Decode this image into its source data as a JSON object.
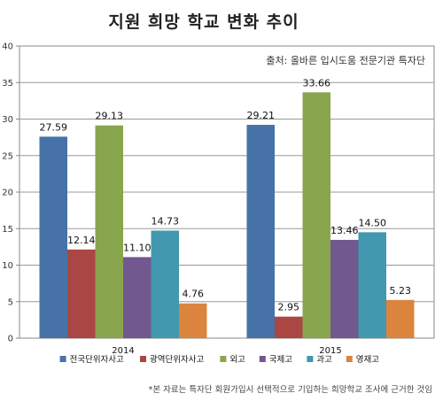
{
  "title": "지원 희망 학교 변화 추이",
  "source": "출처: 올바른 입시도움 전문기관 특자단",
  "footnote": "*본 자료는 특자단 회원가입시 선택적으로 기입하는 희망학교 조사에 근거한 것임",
  "chart_data": {
    "type": "bar",
    "categories": [
      "2014",
      "2015"
    ],
    "ylim": [
      0,
      40
    ],
    "yticks": [
      0,
      5,
      10,
      15,
      20,
      25,
      30,
      35,
      40
    ],
    "grid": true,
    "legend_position": "bottom",
    "series": [
      {
        "name": "전국단위자사고",
        "values": [
          27.59,
          29.21
        ],
        "color": "#4672a8"
      },
      {
        "name": "광역단위자사고",
        "values": [
          12.14,
          2.95
        ],
        "color": "#aa4643"
      },
      {
        "name": "외고",
        "values": [
          29.13,
          33.66
        ],
        "color": "#89a54e"
      },
      {
        "name": "국제고",
        "values": [
          11.1,
          13.46
        ],
        "color": "#71588f"
      },
      {
        "name": "과고",
        "values": [
          14.73,
          14.5
        ],
        "color": "#4198af"
      },
      {
        "name": "영재고",
        "values": [
          4.76,
          5.23
        ],
        "color": "#db843d"
      }
    ]
  }
}
